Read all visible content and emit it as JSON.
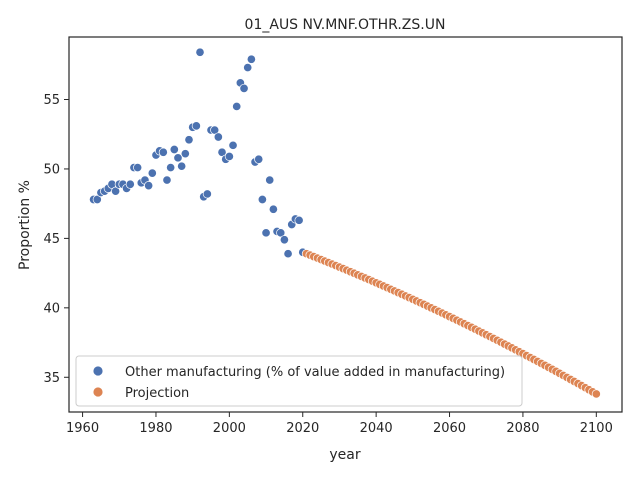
{
  "chart_data": {
    "type": "scatter",
    "title": "01_AUS NV.MNF.OTHR.ZS.UN",
    "xlabel": "year",
    "ylabel": "Proportion %",
    "xlim": [
      1956.3,
      2107.0
    ],
    "ylim": [
      32.5,
      59.5
    ],
    "xticks": [
      1960,
      1980,
      2000,
      2020,
      2040,
      2060,
      2080,
      2100
    ],
    "yticks": [
      35,
      40,
      45,
      50,
      55
    ],
    "legend_position": "lower-left",
    "grid": false,
    "series": [
      {
        "name": "Other manufacturing (% of value added in manufacturing)",
        "color": "#4c72b0",
        "points": [
          [
            1963,
            47.8
          ],
          [
            1964,
            47.8
          ],
          [
            1965,
            48.3
          ],
          [
            1966,
            48.4
          ],
          [
            1967,
            48.6
          ],
          [
            1968,
            48.9
          ],
          [
            1969,
            48.4
          ],
          [
            1970,
            48.9
          ],
          [
            1971,
            48.9
          ],
          [
            1972,
            48.6
          ],
          [
            1973,
            48.9
          ],
          [
            1974,
            50.1
          ],
          [
            1975,
            50.1
          ],
          [
            1976,
            49.0
          ],
          [
            1977,
            49.2
          ],
          [
            1978,
            48.8
          ],
          [
            1979,
            49.7
          ],
          [
            1980,
            51.0
          ],
          [
            1981,
            51.3
          ],
          [
            1982,
            51.2
          ],
          [
            1983,
            49.2
          ],
          [
            1984,
            50.1
          ],
          [
            1985,
            51.4
          ],
          [
            1986,
            50.8
          ],
          [
            1987,
            50.2
          ],
          [
            1988,
            51.1
          ],
          [
            1989,
            52.1
          ],
          [
            1990,
            53.0
          ],
          [
            1991,
            53.1
          ],
          [
            1992,
            58.4
          ],
          [
            1993,
            48.0
          ],
          [
            1994,
            48.2
          ],
          [
            1995,
            52.8
          ],
          [
            1996,
            52.8
          ],
          [
            1997,
            52.3
          ],
          [
            1998,
            51.2
          ],
          [
            1999,
            50.7
          ],
          [
            2000,
            50.9
          ],
          [
            2001,
            51.7
          ],
          [
            2002,
            54.5
          ],
          [
            2003,
            56.2
          ],
          [
            2004,
            55.8
          ],
          [
            2005,
            57.3
          ],
          [
            2006,
            57.9
          ],
          [
            2007,
            50.5
          ],
          [
            2008,
            50.7
          ],
          [
            2009,
            47.8
          ],
          [
            2010,
            45.4
          ],
          [
            2011,
            49.2
          ],
          [
            2012,
            47.1
          ],
          [
            2013,
            45.5
          ],
          [
            2014,
            45.4
          ],
          [
            2015,
            44.9
          ],
          [
            2016,
            43.9
          ],
          [
            2017,
            46.0
          ],
          [
            2018,
            46.4
          ],
          [
            2019,
            46.3
          ],
          [
            2020,
            44.0
          ]
        ]
      },
      {
        "name": "Projection",
        "color": "#dd8452",
        "x_start": 2021,
        "x_end": 2100,
        "y_start": 43.9,
        "y_end": 33.8
      }
    ]
  }
}
